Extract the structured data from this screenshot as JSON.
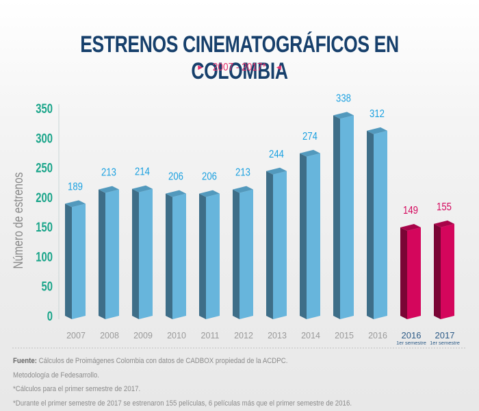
{
  "header": {
    "title": "ESTRENOS CINEMATOGRÁFICOS EN COLOMBIA",
    "subtitle": "2007 - 2017*"
  },
  "colors": {
    "title": "#163f6b",
    "accent": "#e2306b",
    "ytick": "#1aa58a",
    "blue_front": "#67b5dc",
    "blue_side": "#3e6e88",
    "blue_top": "#5299bd",
    "magenta_front": "#d4065c",
    "magenta_side": "#7a0535",
    "magenta_top": "#a80449",
    "blue_label": "#1aa0e0",
    "magenta_label": "#d4065c"
  },
  "chart_data": {
    "type": "bar",
    "title": "ESTRENOS CINEMATOGRÁFICOS EN COLOMBIA",
    "subtitle": "2007 - 2017*",
    "xlabel": "",
    "ylabel": "Número de estrenos",
    "ylim": [
      0,
      350
    ],
    "yticks": [
      0,
      50,
      100,
      150,
      200,
      250,
      300,
      350
    ],
    "grid": false,
    "categories": [
      "2007",
      "2008",
      "2009",
      "2010",
      "2011",
      "2012",
      "2013",
      "2014",
      "2015",
      "2016",
      "2016",
      "2017"
    ],
    "category_sublabels": [
      "",
      "",
      "",
      "",
      "",
      "",
      "",
      "",
      "",
      "",
      "1er semestre",
      "1er semestre"
    ],
    "values": [
      189,
      213,
      214,
      206,
      206,
      213,
      244,
      274,
      338,
      312,
      149,
      155
    ],
    "series_kind": [
      "annual",
      "annual",
      "annual",
      "annual",
      "annual",
      "annual",
      "annual",
      "annual",
      "annual",
      "annual",
      "semester",
      "semester"
    ]
  },
  "footer": {
    "source_label": "Fuente:",
    "source_text": " Cálculos de Proimágenes Colombia con datos de CADBOX propiedad de la ACDPC.",
    "notes": [
      "Metodología de Fedesarrollo.",
      "*Cálculos para el primer semestre de 2017.",
      "*Durante el primer semestre de 2017 se estrenaron 155 películas, 6 películas más que el primer semestre de 2016."
    ]
  }
}
